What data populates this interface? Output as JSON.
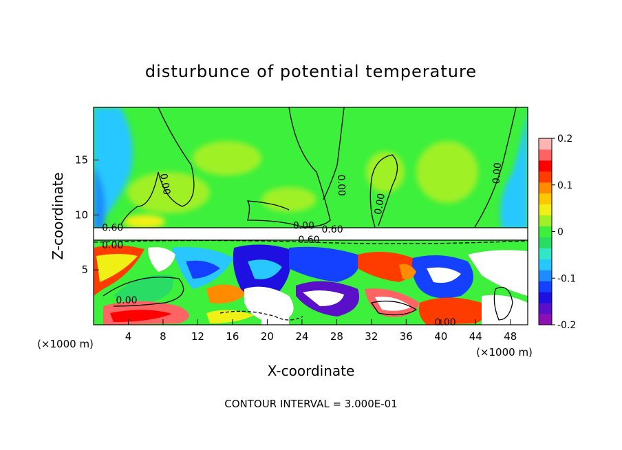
{
  "chart_data": {
    "type": "heatmap",
    "title": "disturbunce of potential temperature",
    "xlabel": "X-coordinate",
    "ylabel": "Z-coordinate",
    "x_unit": "(×1000 m)",
    "x_ticks": [
      4,
      8,
      12,
      16,
      20,
      24,
      28,
      32,
      36,
      40,
      44,
      48
    ],
    "y_ticks": [
      5,
      10,
      15
    ],
    "xlim": [
      0,
      50
    ],
    "ylim": [
      0,
      19.8
    ],
    "colorbar": {
      "ticks": [
        "0.2",
        "0.1",
        "0",
        "-0.1",
        "-0.2"
      ],
      "tick_values": [
        0.2,
        0.1,
        0,
        -0.1,
        -0.2
      ],
      "range": [
        -0.2,
        0.2
      ],
      "colors": [
        "#8c10b4",
        "#5a10c8",
        "#1e10e0",
        "#1440ff",
        "#1e8cff",
        "#28c8ff",
        "#32e6c8",
        "#28dc64",
        "#3cf03c",
        "#a0f028",
        "#f0f014",
        "#ffc800",
        "#ff8c00",
        "#ff3c00",
        "#ff0000",
        "#ff6464",
        "#ffb4b4"
      ]
    },
    "contour_labels": [
      {
        "text": "0.00",
        "x": 8.2,
        "y": 12.8,
        "angle": 80
      },
      {
        "text": "0.00",
        "x": 28.5,
        "y": 12.7,
        "angle": 88
      },
      {
        "text": "0.00",
        "x": 33.0,
        "y": 11.0,
        "angle": -80
      },
      {
        "text": "0.00",
        "x": 46.5,
        "y": 13.8,
        "angle": -85
      },
      {
        "text": "0.00",
        "x": 24.2,
        "y": 9.0,
        "angle": 0
      },
      {
        "text": "0.60",
        "x": 27.5,
        "y": 8.65,
        "angle": 0
      },
      {
        "text": "0.60",
        "x": 24.8,
        "y": 7.7,
        "angle": 0
      },
      {
        "text": "0.60",
        "x": 2.2,
        "y": 8.8,
        "angle": 0
      },
      {
        "text": "0.00",
        "x": 2.2,
        "y": 7.2,
        "angle": 0
      },
      {
        "text": "0.00",
        "x": 3.8,
        "y": 2.2,
        "angle": 0
      },
      {
        "text": "0.00",
        "x": 40.5,
        "y": 0.2,
        "angle": 0
      }
    ],
    "footnote": "CONTOUR INTERVAL = 3.000E-01"
  }
}
